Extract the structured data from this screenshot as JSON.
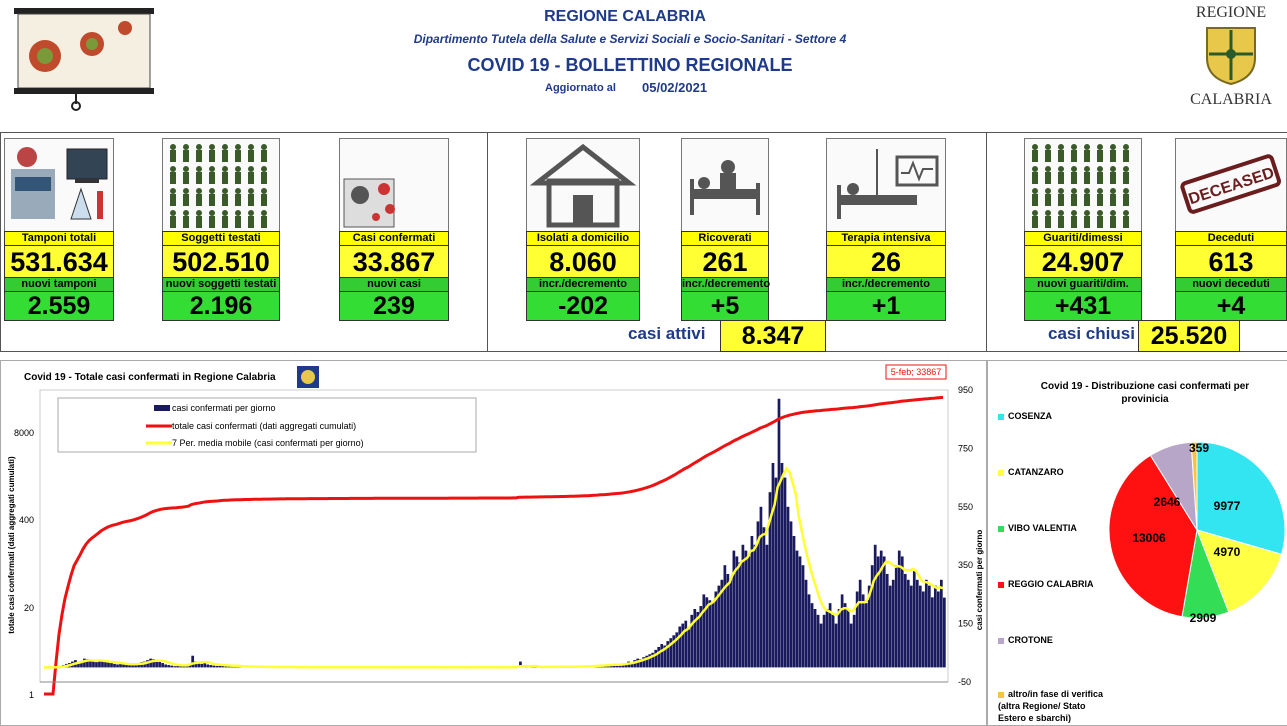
{
  "header": {
    "region": "REGIONE CALABRIA",
    "department": "Dipartimento Tutela della Salute e Servizi Sociali e Socio-Sanitari - Settore 4",
    "bulletin": "COVID 19 - BOLLETTINO REGIONALE",
    "updated_label": "Aggiornato al",
    "updated_date": "05/02/2021",
    "logo_top": "REGIONE",
    "logo_bottom": "CALABRIA"
  },
  "stats": [
    {
      "label": "Tamponi totali",
      "value": "531.634",
      "new_label": "nuovi tamponi",
      "new_value": "2.559"
    },
    {
      "label": "Soggetti testati",
      "value": "502.510",
      "new_label": "nuovi soggetti testati",
      "new_value": "2.196"
    },
    {
      "label": "Casi confermati",
      "value": "33.867",
      "new_label": "nuovi casi",
      "new_value": "239"
    },
    {
      "label": "Isolati a domicilio",
      "value": "8.060",
      "new_label": "incr./decremento",
      "new_value": "-202"
    },
    {
      "label": "Ricoverati",
      "value": "261",
      "new_label": "incr./decremento",
      "new_value": "+5"
    },
    {
      "label": "Terapia intensiva",
      "value": "26",
      "new_label": "incr./decremento",
      "new_value": "+1"
    },
    {
      "label": "Guariti/dimessi",
      "value": "24.907",
      "new_label": "nuovi guariti/dim.",
      "new_value": "+431"
    },
    {
      "label": "Deceduti",
      "value": "613",
      "new_label": "nuovi deceduti",
      "new_value": "+4"
    }
  ],
  "active": {
    "label": "casi attivi",
    "value": "8.347"
  },
  "closed": {
    "label": "casi chiusi",
    "value": "25.520"
  },
  "deceased_stamp": "DECEASED",
  "colors": {
    "cumulative": "#ee1111",
    "daily": "#1a1a5e",
    "moving_avg": "#ffff33",
    "label_bg": "#ffff00",
    "new_bg": "#33cc33"
  },
  "chart_data": [
    {
      "type": "bar",
      "title": "Covid 19 - Totale casi confermati in Regione Calabria",
      "annotation": "5-feb; 33867",
      "ylabel_left": "totale casi confermati (dati aggregati cumulati)",
      "ylabel_right": "casi confermati per giorno",
      "left_ticks": [
        "8000",
        "400",
        "20",
        "1"
      ],
      "right_ticks": [
        "950",
        "750",
        "550",
        "350",
        "150",
        "-50"
      ],
      "right_ylim": [
        -50,
        950
      ],
      "legend": [
        "casi confermati per giorno",
        "totale casi confermati (dati aggregati cumulati)",
        "7 Per. media mobile (casi confermati per giorno)"
      ],
      "series": [
        {
          "name": "casi confermati per giorno",
          "style": "bar",
          "values": [
            0,
            0,
            0,
            0,
            2,
            5,
            8,
            12,
            15,
            20,
            25,
            18,
            22,
            30,
            28,
            25,
            20,
            18,
            22,
            24,
            20,
            18,
            15,
            12,
            10,
            12,
            14,
            10,
            8,
            9,
            12,
            15,
            18,
            20,
            25,
            30,
            28,
            22,
            20,
            15,
            10,
            8,
            6,
            4,
            5,
            6,
            8,
            10,
            12,
            40,
            20,
            15,
            12,
            18,
            10,
            8,
            6,
            5,
            8,
            10,
            6,
            5,
            4,
            3,
            3,
            4,
            2,
            3,
            2,
            2,
            3,
            2,
            1,
            2,
            1,
            1,
            2,
            1,
            1,
            2,
            1,
            2,
            1,
            1,
            0,
            1,
            0,
            1,
            1,
            0,
            1,
            0,
            1,
            0,
            0,
            1,
            1,
            0,
            0,
            0,
            1,
            0,
            1,
            0,
            0,
            1,
            0,
            0,
            1,
            0,
            1,
            0,
            0,
            0,
            1,
            0,
            0,
            0,
            1,
            0,
            0,
            1,
            0,
            0,
            0,
            1,
            0,
            1,
            0,
            0,
            0,
            0,
            1,
            0,
            0,
            1,
            0,
            0,
            1,
            0,
            0,
            0,
            0,
            1,
            0,
            1,
            0,
            0,
            0,
            1,
            0,
            0,
            0,
            1,
            0,
            0,
            1,
            2,
            20,
            3,
            1,
            2,
            1,
            1,
            2,
            2,
            1,
            3,
            2,
            1,
            2,
            3,
            2,
            1,
            3,
            4,
            2,
            3,
            4,
            5,
            3,
            4,
            5,
            6,
            8,
            10,
            6,
            8,
            10,
            12,
            8,
            10,
            12,
            15,
            20,
            18,
            25,
            30,
            28,
            35,
            40,
            45,
            50,
            60,
            70,
            80,
            75,
            90,
            100,
            110,
            120,
            140,
            150,
            160,
            130,
            180,
            200,
            190,
            210,
            250,
            240,
            230,
            220,
            260,
            280,
            300,
            350,
            320,
            300,
            400,
            380,
            360,
            420,
            400,
            380,
            450,
            420,
            500,
            550,
            480,
            420,
            600,
            700,
            650,
            920,
            700,
            650,
            550,
            500,
            450,
            400,
            380,
            350,
            300,
            250,
            220,
            200,
            180,
            150,
            180,
            200,
            220,
            180,
            150,
            200,
            250,
            220,
            200,
            150,
            180,
            260,
            300,
            250,
            220,
            280,
            350,
            420,
            380,
            400,
            380,
            320,
            280,
            300,
            350,
            400,
            380,
            320,
            300,
            280,
            330,
            300,
            280,
            260,
            300,
            280,
            240,
            280,
            260,
            300,
            239
          ]
        },
        {
          "name": "totale casi confermati (dati aggregati cumulati)",
          "style": "line"
        },
        {
          "name": "7 Per. media mobile (casi confermati per giorno)",
          "style": "line"
        }
      ]
    },
    {
      "type": "pie",
      "title": "Covid 19 - Distribuzione casi confermati per provinicia",
      "categories": [
        "COSENZA",
        "CATANZARO",
        "VIBO VALENTIA",
        "REGGIO CALABRIA",
        "CROTONE",
        "altro/in fase di verifica (altra Regione/ Stato Estero e sbarchi)"
      ],
      "values": [
        9977,
        4970,
        2909,
        13006,
        2646,
        359
      ],
      "colors": [
        "#33e5f0",
        "#ffff44",
        "#33dd55",
        "#ff1111",
        "#b8a6c8",
        "#f5c542"
      ]
    }
  ]
}
